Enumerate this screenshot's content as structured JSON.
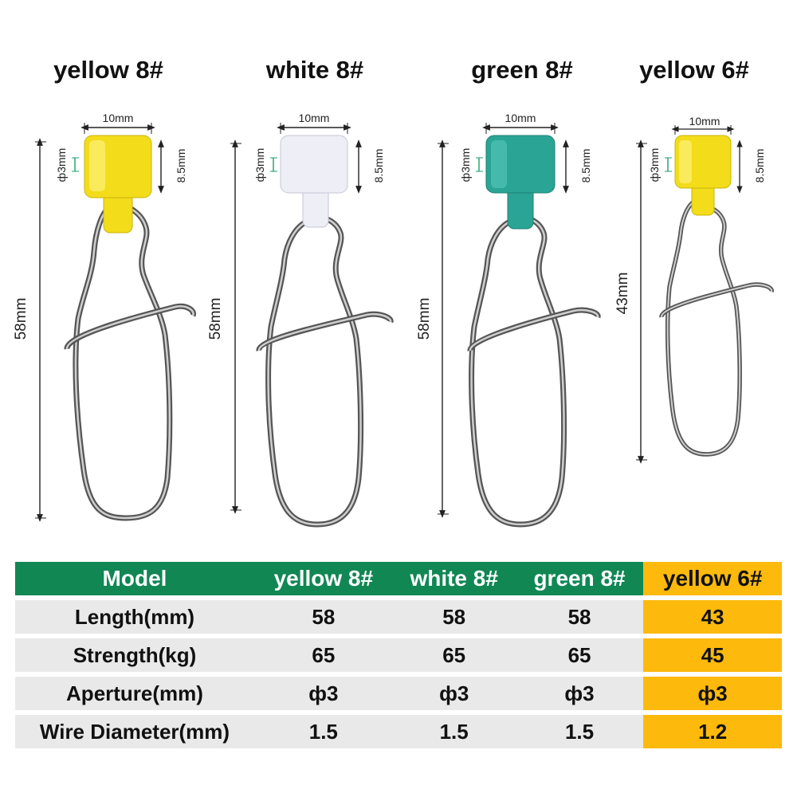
{
  "products": [
    {
      "title": "yellow 8#",
      "color": "#f3dc1a",
      "length_label": "58mm",
      "width_label": "10mm",
      "height_label": "8.5mm",
      "hole_label": "ф3mm"
    },
    {
      "title": "white 8#",
      "color": "#eeeef6",
      "length_label": "58mm",
      "width_label": "10mm",
      "height_label": "8.5mm",
      "hole_label": "ф3mm"
    },
    {
      "title": "green 8#",
      "color": "#2aa595",
      "length_label": "58mm",
      "width_label": "10mm",
      "height_label": "8.5mm",
      "hole_label": "ф3mm"
    },
    {
      "title": "yellow 6#",
      "color": "#f3dc1a",
      "length_label": "43mm",
      "width_label": "10mm",
      "height_label": "8.5mm",
      "hole_label": "ф3mm"
    }
  ],
  "table": {
    "headers": [
      "Model",
      "yellow 8#",
      "white 8#",
      "green 8#",
      "yellow 6#"
    ],
    "rows": [
      {
        "label": "Length(mm)",
        "values": [
          "58",
          "58",
          "58",
          "43"
        ]
      },
      {
        "label": "Strength(kg)",
        "values": [
          "65",
          "65",
          "65",
          "45"
        ]
      },
      {
        "label": "Aperture(mm)",
        "values": [
          "ф3",
          "ф3",
          "ф3",
          "ф3"
        ]
      },
      {
        "label": "Wire Diameter(mm)",
        "values": [
          "1.5",
          "1.5",
          "1.5",
          "1.2"
        ]
      }
    ]
  },
  "colors": {
    "header_green": "#118754",
    "highlight": "#fdba0c",
    "row_gray": "#e9e9e9"
  }
}
